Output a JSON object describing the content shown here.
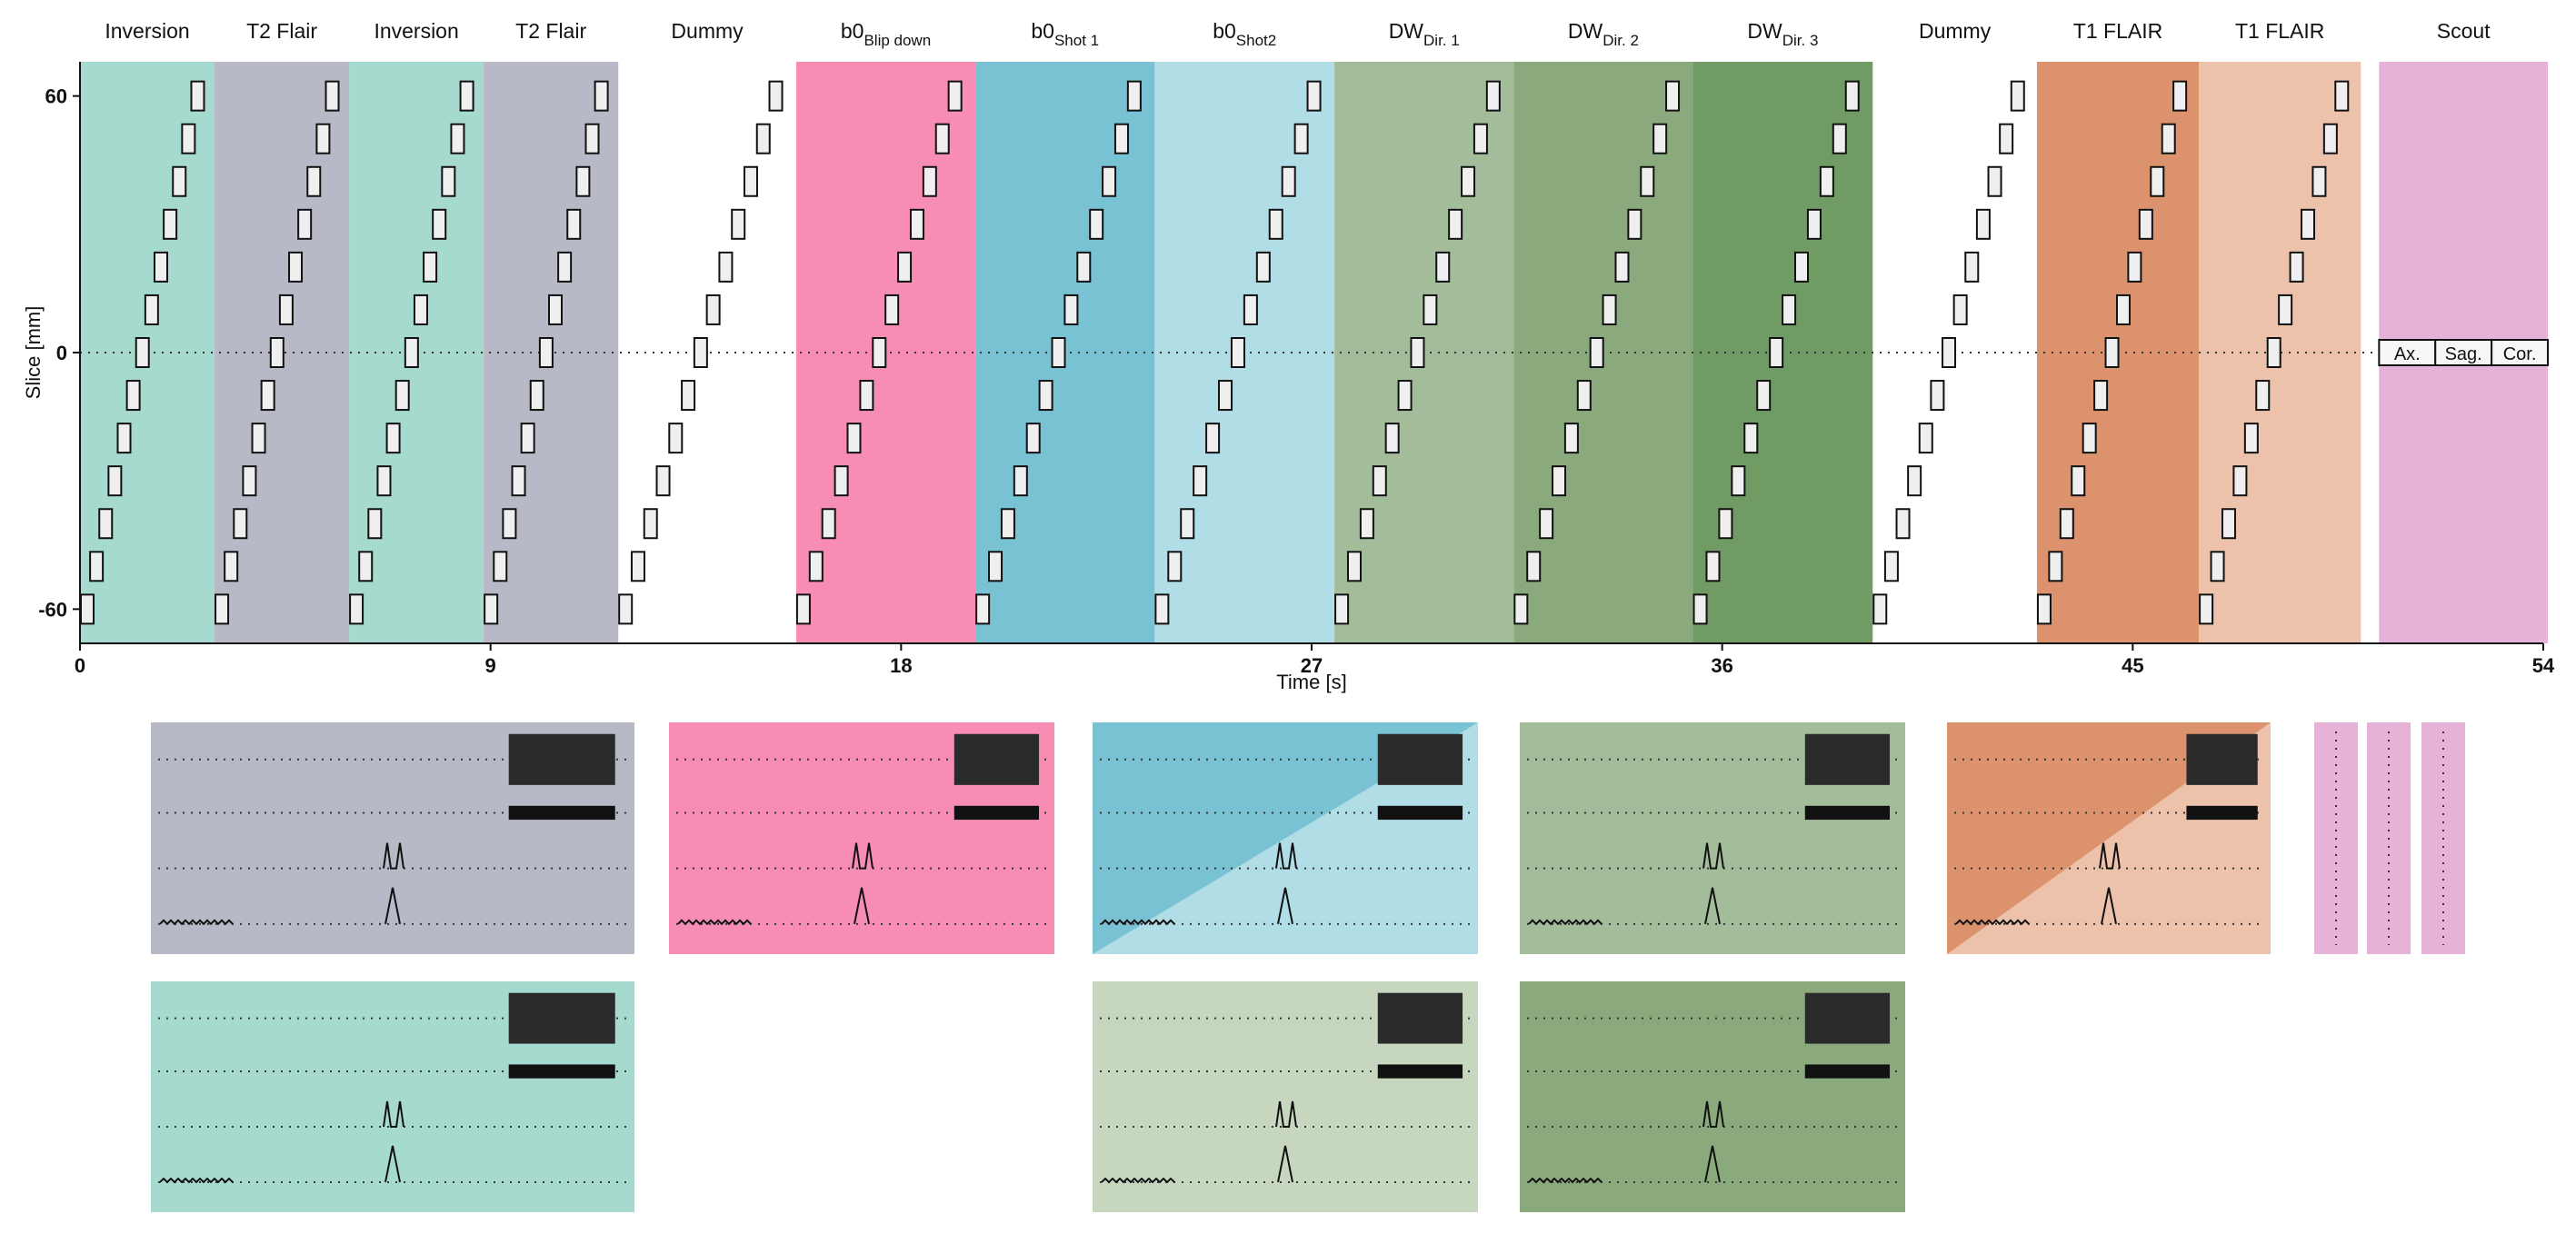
{
  "chart_data": {
    "type": "timing-diagram",
    "xlabel": "Time [s]",
    "ylabel": "Slice [mm]",
    "xlim": [
      0,
      54
    ],
    "ylim": [
      -68,
      68
    ],
    "x_ticks": [
      "0",
      "9",
      "18",
      "27",
      "36",
      "45",
      "54"
    ],
    "y_ticks": [
      "60",
      "0",
      "-60"
    ],
    "colors": {
      "inversion": "#a6dace",
      "t2flair": "#b8b9c6",
      "b0blip": "#f78db5",
      "b0shot1": "#79c2d3",
      "b0shot2": "#b1dde6",
      "dw1": "#a3bd9a",
      "dw2": "#8aaa7d",
      "dw3": "#719b64",
      "t1flair_a": "#dd926e",
      "t1flair_b": "#ecc2aa",
      "scout": "#e6b2d8"
    },
    "segments": [
      {
        "label": "Inversion",
        "sub": "",
        "t0": 0.0,
        "t1": 2.95,
        "color": "#a6dace"
      },
      {
        "label": "T2 Flair",
        "sub": "",
        "t0": 2.95,
        "t1": 5.9,
        "color": "#b8b9c6"
      },
      {
        "label": "Inversion",
        "sub": "",
        "t0": 5.9,
        "t1": 8.85,
        "color": "#a6dace"
      },
      {
        "label": "T2 Flair",
        "sub": "",
        "t0": 8.85,
        "t1": 11.8,
        "color": "#b8b9c6"
      },
      {
        "label": "Dummy",
        "sub": "",
        "t0": 11.8,
        "t1": 15.7,
        "color": null
      },
      {
        "label": "b0",
        "sub": "Blip down",
        "t0": 15.7,
        "t1": 19.63,
        "color": "#f78db5"
      },
      {
        "label": "b0",
        "sub": "Shot 1",
        "t0": 19.63,
        "t1": 23.56,
        "color": "#79c2d3"
      },
      {
        "label": "b0",
        "sub": "Shot2",
        "t0": 23.56,
        "t1": 27.5,
        "color": "#b1dde6"
      },
      {
        "label": "DW",
        "sub": "Dir. 1",
        "t0": 27.5,
        "t1": 31.43,
        "color": "#a3bd9a"
      },
      {
        "label": "DW",
        "sub": "Dir. 2",
        "t0": 31.43,
        "t1": 35.36,
        "color": "#8aaa7d"
      },
      {
        "label": "DW",
        "sub": "Dir. 3",
        "t0": 35.36,
        "t1": 39.3,
        "color": "#719b64"
      },
      {
        "label": "Dummy",
        "sub": "",
        "t0": 39.3,
        "t1": 42.9,
        "color": null
      },
      {
        "label": "T1 FLAIR",
        "sub": "",
        "t0": 42.9,
        "t1": 46.45,
        "color": "#dd926e"
      },
      {
        "label": "T1 FLAIR",
        "sub": "",
        "t0": 46.45,
        "t1": 50.0,
        "color": "#ecc2aa"
      },
      {
        "label": "Scout",
        "sub": "",
        "t0": 50.4,
        "t1": 54.1,
        "color": "#e6b2d8"
      }
    ],
    "scout_labels": [
      "Ax.",
      "Sag.",
      "Cor."
    ],
    "slice_positions_mm": [
      -60,
      -50,
      -40,
      -30,
      -20,
      -10,
      0,
      10,
      20,
      30,
      40,
      50,
      60
    ]
  }
}
